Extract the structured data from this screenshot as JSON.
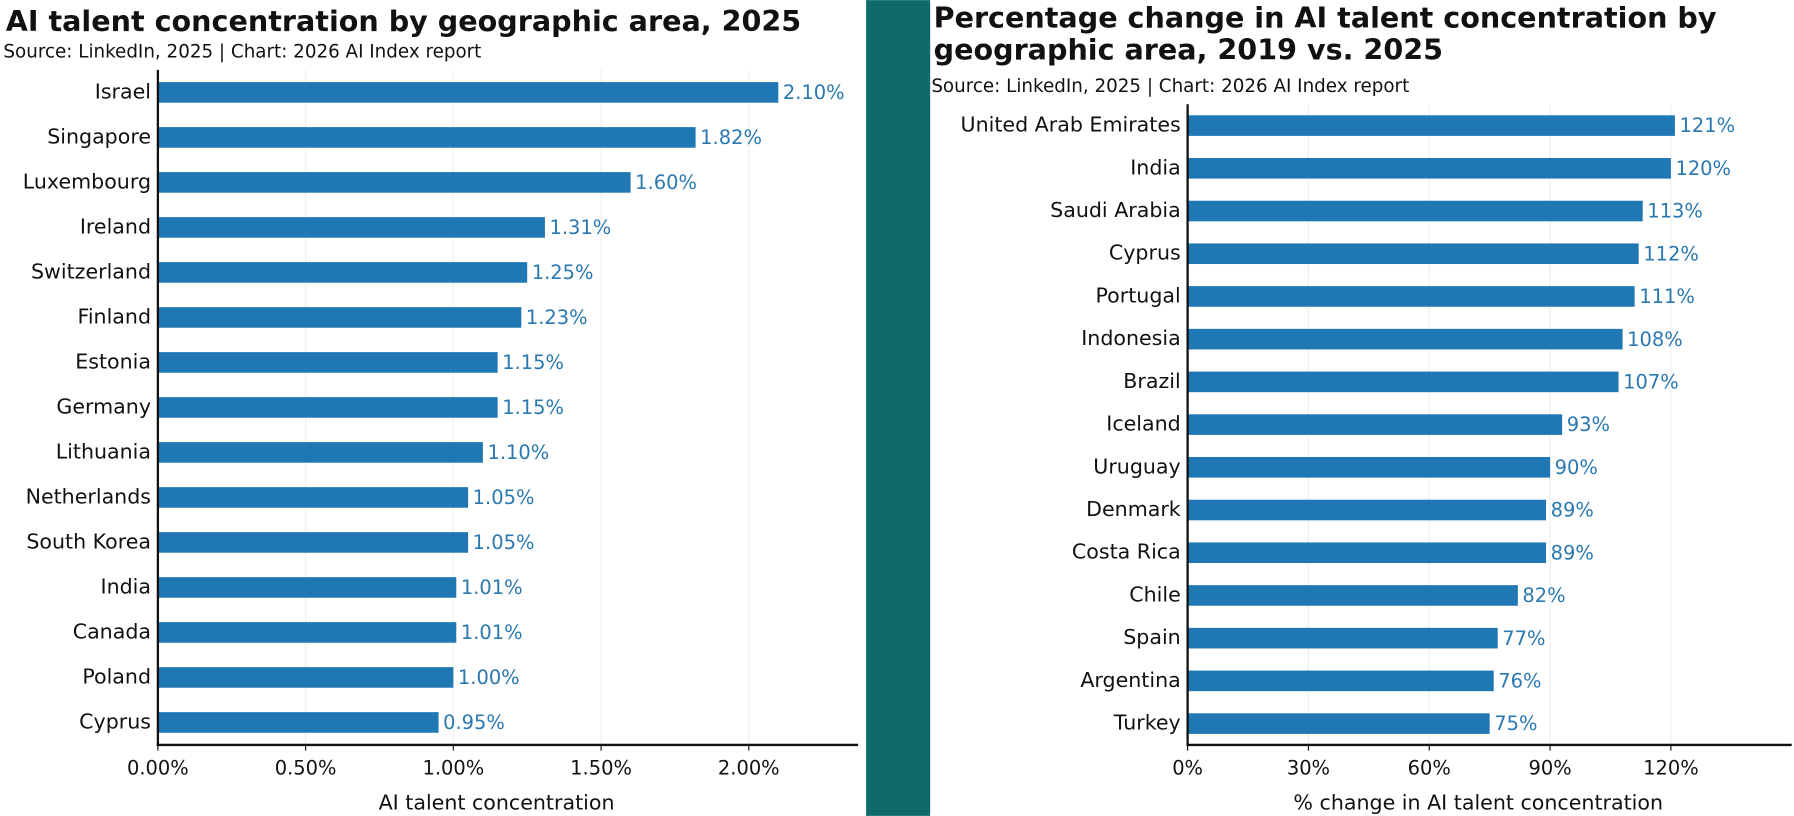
{
  "chart_data": [
    {
      "type": "bar",
      "orientation": "horizontal",
      "title": [
        "AI talent concentration by geographic area, 2025"
      ],
      "subtitle": "Source: LinkedIn, 2025 | Chart: 2026 AI Index report",
      "x_label": "AI talent concentration",
      "categories": [
        "Israel",
        "Singapore",
        "Luxembourg",
        "Ireland",
        "Switzerland",
        "Finland",
        "Estonia",
        "Germany",
        "Lithuania",
        "Netherlands",
        "South Korea",
        "India",
        "Canada",
        "Poland",
        "Cyprus"
      ],
      "values": [
        2.1,
        1.82,
        1.6,
        1.31,
        1.25,
        1.23,
        1.15,
        1.15,
        1.1,
        1.05,
        1.05,
        1.01,
        1.01,
        1.0,
        0.95
      ],
      "value_labels": [
        "2.10%",
        "1.82%",
        "1.60%",
        "1.31%",
        "1.25%",
        "1.23%",
        "1.15%",
        "1.15%",
        "1.10%",
        "1.05%",
        "1.05%",
        "1.01%",
        "1.01%",
        "1.00%",
        "0.95%"
      ],
      "color": "#1f77b4",
      "xlim": [
        0,
        2.37
      ],
      "xticks": [
        {
          "value": 0,
          "label": "0.00%"
        },
        {
          "value": 0.5,
          "label": "0.50%"
        },
        {
          "value": 1,
          "label": "1.00%"
        },
        {
          "value": 1.5,
          "label": "1.50%"
        },
        {
          "value": 2,
          "label": "2.00%"
        }
      ],
      "grid": true
    },
    {
      "type": "bar",
      "orientation": "horizontal",
      "title": [
        "Percentage change in AI talent concentration by",
        "geographic area, 2019 vs. 2025"
      ],
      "subtitle": "Source: LinkedIn, 2025 | Chart: 2026 AI Index report",
      "x_label": "% change in AI talent concentration",
      "categories": [
        "United Arab Emirates",
        "India",
        "Saudi Arabia",
        "Cyprus",
        "Portugal",
        "Indonesia",
        "Brazil",
        "Iceland",
        "Uruguay",
        "Denmark",
        "Costa Rica",
        "Chile",
        "Spain",
        "Argentina",
        "Turkey"
      ],
      "values": [
        121,
        120,
        113,
        112,
        111,
        108,
        107,
        93,
        90,
        89,
        89,
        82,
        77,
        76,
        75
      ],
      "value_labels": [
        "121%",
        "120%",
        "113%",
        "112%",
        "111%",
        "108%",
        "107%",
        "93%",
        "90%",
        "89%",
        "89%",
        "82%",
        "77%",
        "76%",
        "75%"
      ],
      "color": "#1f77b4",
      "xlim": [
        0,
        150
      ],
      "xticks": [
        {
          "value": 0,
          "label": "0%"
        },
        {
          "value": 30,
          "label": "30%"
        },
        {
          "value": 60,
          "label": "60%"
        },
        {
          "value": 90,
          "label": "90%"
        },
        {
          "value": 120,
          "label": "120%"
        }
      ],
      "grid": true
    }
  ]
}
